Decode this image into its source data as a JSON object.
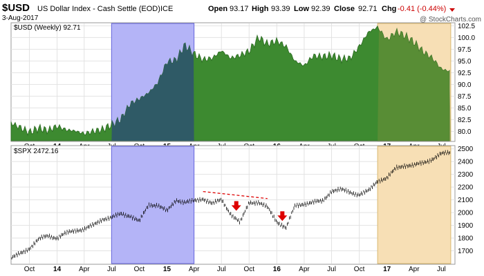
{
  "header": {
    "symbol": "$USD",
    "name": "US Dollar Index - Cash Settle (EOD)",
    "exchange": "ICE",
    "date": "3-Aug-2017",
    "open_label": "Open",
    "open": "93.17",
    "high_label": "High",
    "high": "93.39",
    "low_label": "Low",
    "low": "92.39",
    "close_label": "Close",
    "close": "92.71",
    "chg_label": "Chg",
    "chg": "-0.41 (-0.44%)",
    "watermark": "@ StockCharts.com"
  },
  "colors": {
    "usd_fill": "#3d8a30",
    "usd_fill_under_blue": "#2f5a66",
    "blue_band": "#b4b4f7",
    "orange_band": "#f7dfb5",
    "chg_negative": "#cc0000",
    "arrow": "#dd0000",
    "trendline": "#dd0000",
    "candles": "#000000"
  },
  "chart_data": [
    {
      "type": "area",
      "legend": "$USD (Weekly) 92.71",
      "legend_placement": "top-left",
      "ylim": [
        78,
        103
      ],
      "yticks": [
        80,
        82.5,
        85,
        87.5,
        90,
        92.5,
        95,
        97.5,
        100,
        102.5
      ],
      "ytick_labels": [
        "80.0",
        "82.5",
        "85.0",
        "87.5",
        "90.0",
        "92.5",
        "95.0",
        "97.5",
        "100.0",
        "102.5"
      ],
      "grid": true,
      "x_tick_labels": [
        "Oct",
        "14",
        "Apr",
        "Jul",
        "Oct",
        "15",
        "Apr",
        "Jul",
        "Oct",
        "16",
        "Apr",
        "Jul",
        "Oct",
        "17",
        "Apr",
        "Jul"
      ],
      "series": [
        {
          "x": [
            "2013-08",
            "2013-09",
            "2013-10",
            "2013-11",
            "2013-12",
            "2014-01",
            "2014-02",
            "2014-03",
            "2014-04",
            "2014-05",
            "2014-06",
            "2014-07",
            "2014-08",
            "2014-09",
            "2014-10",
            "2014-11",
            "2014-12",
            "2015-01",
            "2015-02",
            "2015-03",
            "2015-04",
            "2015-05",
            "2015-06",
            "2015-07",
            "2015-08",
            "2015-09",
            "2015-10",
            "2015-11",
            "2015-12",
            "2016-01",
            "2016-02",
            "2016-03",
            "2016-04",
            "2016-05",
            "2016-06",
            "2016-07",
            "2016-08",
            "2016-09",
            "2016-10",
            "2016-11",
            "2016-12",
            "2017-01",
            "2017-02",
            "2017-03",
            "2017-04",
            "2017-05",
            "2017-06",
            "2017-07",
            "2017-08"
          ],
          "values": [
            81.8,
            80.8,
            79.8,
            80.7,
            80.2,
            81.1,
            80.3,
            80.1,
            79.5,
            80.0,
            80.4,
            81.4,
            82.6,
            85.9,
            86.9,
            88.2,
            90.3,
            94.8,
            95.2,
            98.4,
            96.5,
            95.3,
            95.6,
            97.2,
            95.6,
            96.2,
            97.1,
            100.0,
            98.6,
            99.3,
            98.1,
            95.0,
            94.0,
            96.1,
            95.9,
            96.2,
            95.4,
            95.6,
            98.1,
            101.2,
            102.2,
            99.5,
            101.2,
            100.4,
            99.0,
            97.0,
            95.6,
            93.3,
            92.7
          ]
        }
      ],
      "shaded_periods": [
        {
          "start": "2014-07",
          "end": "2015-04",
          "color": "blue"
        },
        {
          "start": "2016-12",
          "end": "2017-08",
          "color": "orange"
        }
      ]
    },
    {
      "type": "bar",
      "legend": "$SPX 2472.16",
      "legend_placement": "top-left",
      "ylim": [
        1600,
        2520
      ],
      "yticks": [
        1700,
        1800,
        1900,
        2000,
        2100,
        2200,
        2300,
        2400,
        2500
      ],
      "ytick_labels": [
        "1700",
        "1800",
        "1900",
        "2000",
        "2100",
        "2200",
        "2300",
        "2400",
        "2500"
      ],
      "grid": true,
      "x_tick_labels": [
        "Oct",
        "14",
        "Apr",
        "Jul",
        "Oct",
        "15",
        "Apr",
        "Jul",
        "Oct",
        "16",
        "Apr",
        "Jul",
        "Oct",
        "17",
        "Apr",
        "Jul"
      ],
      "series": [
        {
          "x": [
            "2013-08",
            "2013-09",
            "2013-10",
            "2013-11",
            "2013-12",
            "2014-01",
            "2014-02",
            "2014-03",
            "2014-04",
            "2014-05",
            "2014-06",
            "2014-07",
            "2014-08",
            "2014-09",
            "2014-10",
            "2014-11",
            "2014-12",
            "2015-01",
            "2015-02",
            "2015-03",
            "2015-04",
            "2015-05",
            "2015-06",
            "2015-07",
            "2015-08",
            "2015-09",
            "2015-10",
            "2015-11",
            "2015-12",
            "2016-01",
            "2016-02",
            "2016-03",
            "2016-04",
            "2016-05",
            "2016-06",
            "2016-07",
            "2016-08",
            "2016-09",
            "2016-10",
            "2016-11",
            "2016-12",
            "2017-01",
            "2017-02",
            "2017-03",
            "2017-04",
            "2017-05",
            "2017-06",
            "2017-07",
            "2017-08"
          ],
          "values": [
            1640,
            1680,
            1720,
            1790,
            1820,
            1800,
            1840,
            1860,
            1870,
            1900,
            1950,
            1960,
            1990,
            1975,
            1930,
            2060,
            2060,
            2010,
            2100,
            2080,
            2090,
            2110,
            2070,
            2100,
            1990,
            1920,
            2080,
            2080,
            2040,
            1930,
            1880,
            2050,
            2070,
            2080,
            2090,
            2170,
            2180,
            2160,
            2140,
            2170,
            2250,
            2270,
            2350,
            2370,
            2370,
            2390,
            2420,
            2460,
            2472
          ]
        }
      ],
      "annotations": [
        {
          "type": "trendline",
          "from": {
            "x": "2015-05",
            "y": 2165
          },
          "to": {
            "x": "2015-12",
            "y": 2110
          }
        },
        {
          "type": "down-arrow",
          "x": "2015-08",
          "y": 2090
        },
        {
          "type": "down-arrow",
          "x": "2016-01",
          "y": 2010
        }
      ],
      "shaded_periods": [
        {
          "start": "2014-07",
          "end": "2015-04",
          "color": "blue"
        },
        {
          "start": "2016-12",
          "end": "2017-08",
          "color": "orange"
        }
      ]
    }
  ]
}
